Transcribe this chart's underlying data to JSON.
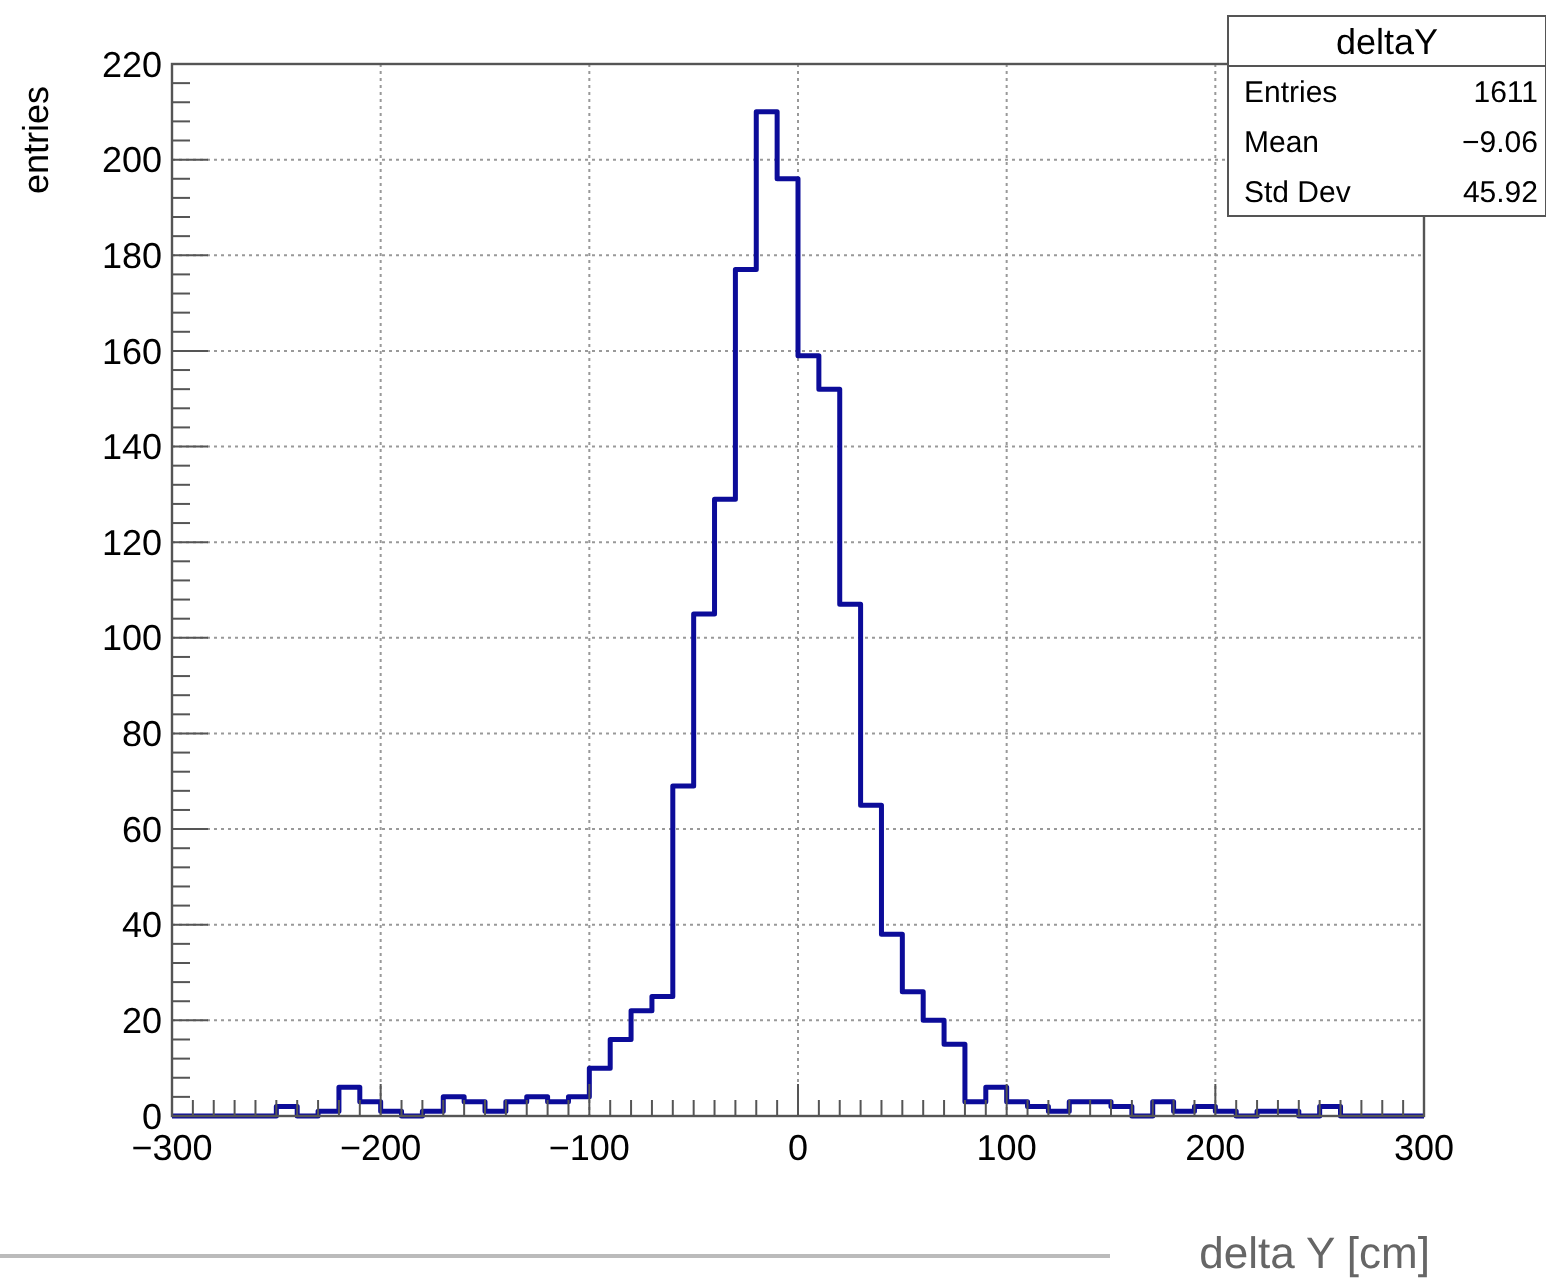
{
  "chart_data": {
    "type": "histogram",
    "xlabel": "delta Y [cm]",
    "ylabel": "entries",
    "color": "#0c0c99",
    "bins": [
      -300,
      -290,
      -280,
      -270,
      -260,
      -250,
      -240,
      -230,
      -220,
      -210,
      -200,
      -190,
      -180,
      -170,
      -160,
      -150,
      -140,
      -130,
      -120,
      -110,
      -100,
      -90,
      -80,
      -70,
      -60,
      -50,
      -40,
      -30,
      -20,
      -10,
      0,
      10,
      20,
      30,
      40,
      50,
      60,
      70,
      80,
      90,
      100,
      110,
      120,
      130,
      140,
      150,
      160,
      170,
      180,
      190,
      200,
      210,
      220,
      230,
      240,
      250,
      260,
      270,
      280,
      290,
      300
    ],
    "values": [
      0,
      0,
      0,
      0,
      0,
      2,
      0,
      1,
      6,
      3,
      1,
      0,
      1,
      4,
      3,
      1,
      3,
      4,
      3,
      4,
      10,
      16,
      22,
      25,
      69,
      105,
      129,
      177,
      210,
      196,
      159,
      152,
      107,
      65,
      38,
      26,
      20,
      15,
      3,
      6,
      3,
      2,
      1,
      3,
      3,
      2,
      0,
      3,
      1,
      2,
      1,
      0,
      1,
      1,
      0,
      2,
      0,
      0,
      0,
      0
    ],
    "xlim": [
      -300,
      300
    ],
    "xticks": [
      {
        "value": -300,
        "label": "−300"
      },
      {
        "value": -200,
        "label": "−200"
      },
      {
        "value": -100,
        "label": "−100"
      },
      0,
      100,
      200,
      300
    ],
    "ylim": [
      0,
      220
    ],
    "yticks": [
      0,
      20,
      40,
      60,
      80,
      100,
      120,
      140,
      160,
      180,
      200,
      220
    ],
    "grid": true,
    "annotations": [
      "deltaY",
      "Entries",
      "1611",
      "Mean",
      "−9.06",
      "Std Dev",
      "45.92"
    ]
  }
}
